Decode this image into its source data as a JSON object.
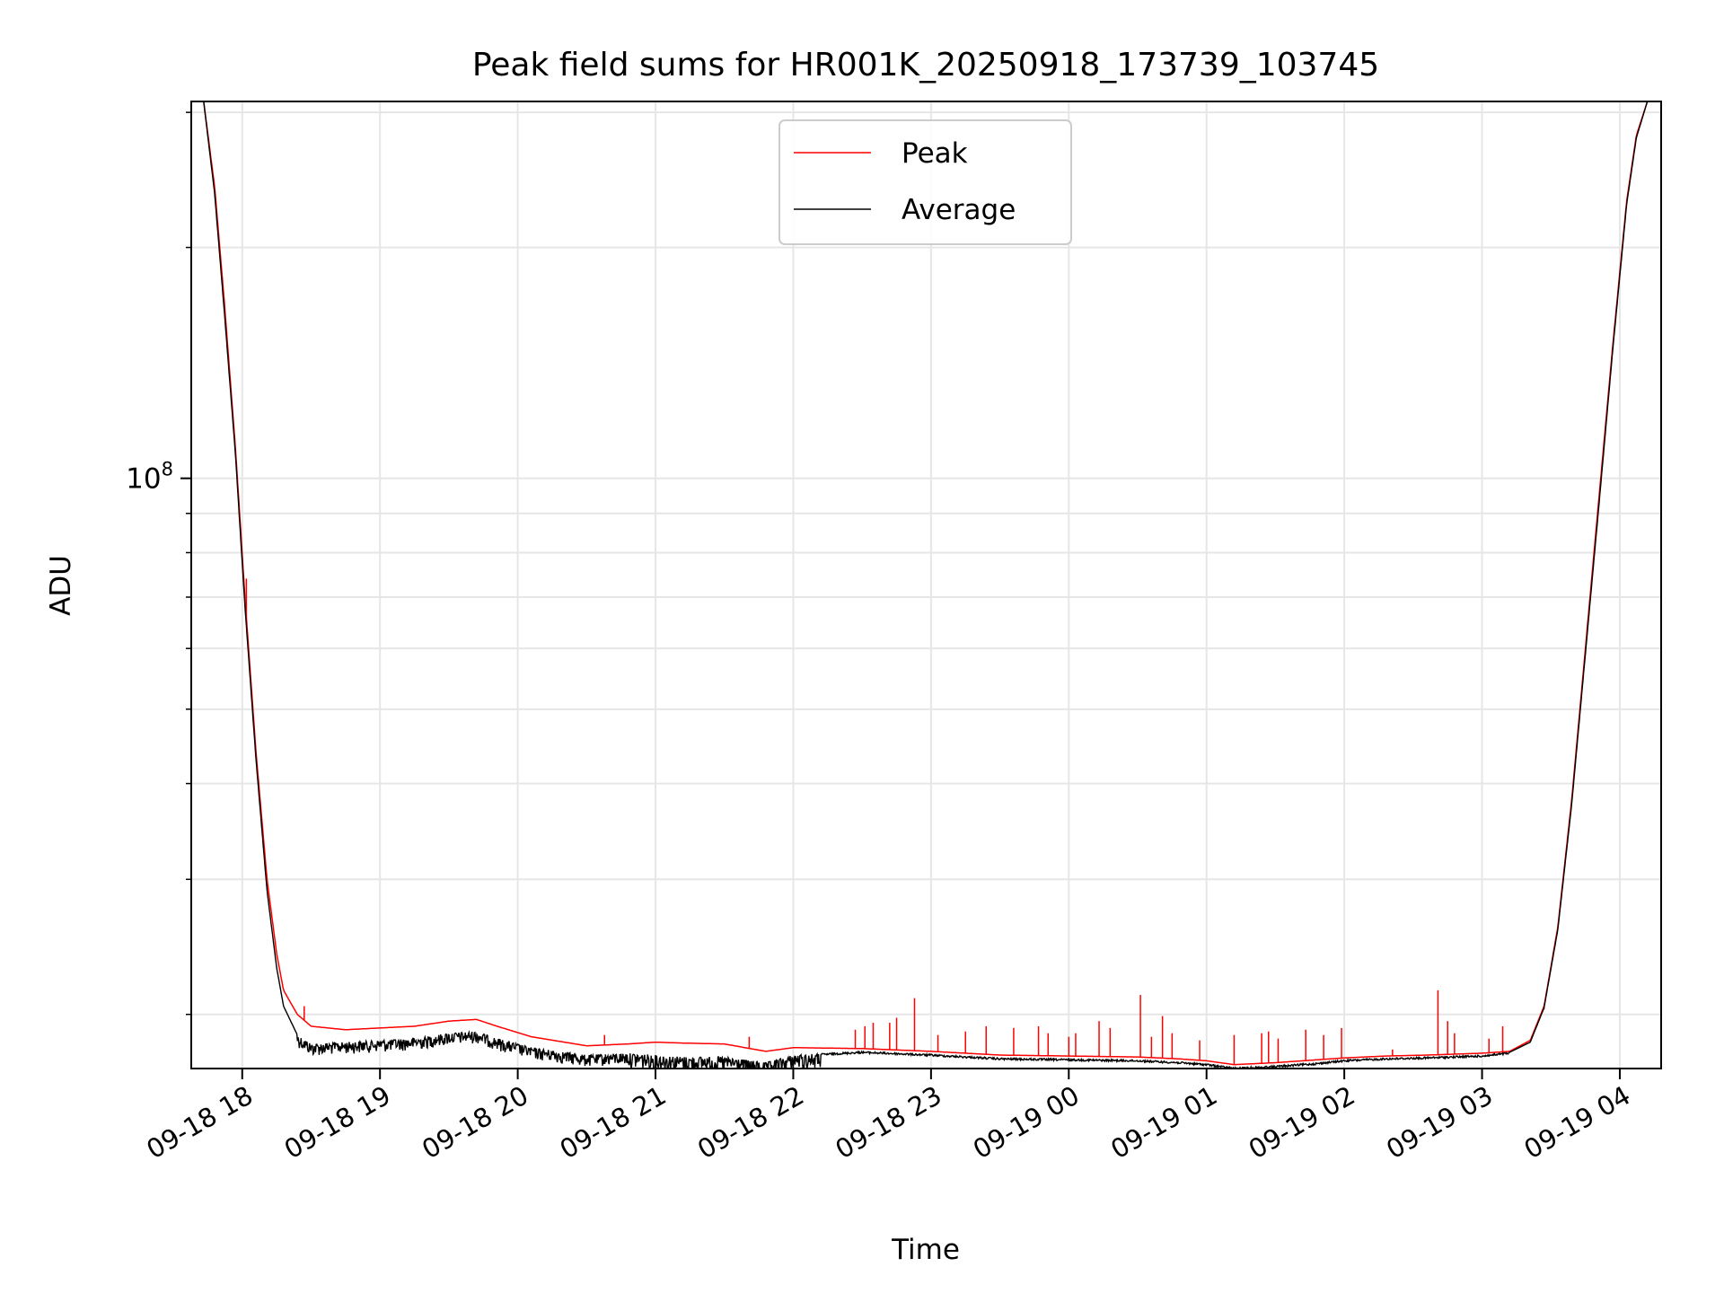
{
  "chart_data": {
    "type": "line",
    "title": "Peak field sums for HR001K_20250918_173739_103745",
    "xlabel": "Time",
    "ylabel": "ADU",
    "yscale": "log",
    "ylim": [
      17000000,
      310000000
    ],
    "xlim_hours": [
      17.63,
      28.3
    ],
    "grid": true,
    "legend_position": "upper center",
    "x_tick_hours": [
      18,
      19,
      20,
      21,
      22,
      23,
      24,
      25,
      26,
      27,
      28
    ],
    "x_tick_labels": [
      "09-18 18",
      "09-18 19",
      "09-18 20",
      "09-18 21",
      "09-18 22",
      "09-18 23",
      "09-19 00",
      "09-19 01",
      "09-19 02",
      "09-19 03",
      "09-19 04"
    ],
    "y_major_ticks": [
      {
        "value": 100000000,
        "base": "10",
        "exponent": "8"
      }
    ],
    "y_minor_ticks": [
      20000000,
      30000000,
      40000000,
      50000000,
      60000000,
      70000000,
      80000000,
      90000000,
      200000000,
      300000000
    ],
    "series": [
      {
        "name": "Peak",
        "color": "#ff0000",
        "x_hours": [
          17.72,
          17.8,
          17.87,
          17.95,
          18.02,
          18.1,
          18.18,
          18.25,
          18.3,
          18.4,
          18.5,
          18.75,
          19.0,
          19.25,
          19.5,
          19.7,
          19.85,
          20.1,
          20.5,
          20.8,
          21.0,
          21.2,
          21.5,
          21.8,
          22.0,
          22.5,
          23.0,
          23.5,
          24.0,
          24.5,
          24.8,
          25.0,
          25.2,
          25.5,
          25.8,
          26.0,
          26.3,
          26.6,
          27.0,
          27.2,
          27.35,
          27.45,
          27.55,
          27.65,
          27.75,
          27.85,
          27.95,
          28.05,
          28.12,
          28.2
        ],
        "values": [
          310000000,
          240000000,
          170000000,
          110000000,
          70000000,
          44000000,
          30000000,
          24000000,
          21500000,
          20000000,
          19300000,
          19100000,
          19200000,
          19300000,
          19600000,
          19700000,
          19300000,
          18700000,
          18200000,
          18300000,
          18400000,
          18350000,
          18300000,
          17900000,
          18100000,
          18050000,
          17900000,
          17700000,
          17650000,
          17600000,
          17500000,
          17400000,
          17200000,
          17300000,
          17450000,
          17550000,
          17650000,
          17700000,
          17800000,
          17900000,
          18500000,
          20500000,
          26000000,
          38000000,
          60000000,
          95000000,
          150000000,
          230000000,
          280000000,
          310000000
        ],
        "spikes": [
          {
            "hour": 18.03,
            "value": 74000000
          },
          {
            "hour": 18.45,
            "value": 20500000
          },
          {
            "hour": 20.63,
            "value": 18800000
          },
          {
            "hour": 21.68,
            "value": 18700000
          },
          {
            "hour": 22.45,
            "value": 19100000
          },
          {
            "hour": 22.52,
            "value": 19300000
          },
          {
            "hour": 22.58,
            "value": 19500000
          },
          {
            "hour": 22.7,
            "value": 19500000
          },
          {
            "hour": 22.75,
            "value": 19800000
          },
          {
            "hour": 22.88,
            "value": 21000000
          },
          {
            "hour": 23.05,
            "value": 18800000
          },
          {
            "hour": 23.25,
            "value": 19000000
          },
          {
            "hour": 23.4,
            "value": 19300000
          },
          {
            "hour": 23.6,
            "value": 19200000
          },
          {
            "hour": 23.78,
            "value": 19300000
          },
          {
            "hour": 23.85,
            "value": 18900000
          },
          {
            "hour": 24.0,
            "value": 18700000
          },
          {
            "hour": 24.05,
            "value": 18900000
          },
          {
            "hour": 24.22,
            "value": 19600000
          },
          {
            "hour": 24.3,
            "value": 19200000
          },
          {
            "hour": 24.52,
            "value": 21200000
          },
          {
            "hour": 24.6,
            "value": 18700000
          },
          {
            "hour": 24.68,
            "value": 19900000
          },
          {
            "hour": 24.75,
            "value": 18900000
          },
          {
            "hour": 24.95,
            "value": 18500000
          },
          {
            "hour": 25.2,
            "value": 18800000
          },
          {
            "hour": 25.4,
            "value": 18900000
          },
          {
            "hour": 25.45,
            "value": 19000000
          },
          {
            "hour": 25.52,
            "value": 18600000
          },
          {
            "hour": 25.72,
            "value": 19100000
          },
          {
            "hour": 25.85,
            "value": 18800000
          },
          {
            "hour": 25.98,
            "value": 19200000
          },
          {
            "hour": 26.35,
            "value": 18000000
          },
          {
            "hour": 26.68,
            "value": 21500000
          },
          {
            "hour": 26.75,
            "value": 19600000
          },
          {
            "hour": 26.8,
            "value": 18900000
          },
          {
            "hour": 27.05,
            "value": 18600000
          },
          {
            "hour": 27.15,
            "value": 19300000
          },
          {
            "hour": 27.32,
            "value": 18300000
          },
          {
            "hour": 27.45,
            "value": 20300000
          }
        ]
      },
      {
        "name": "Average",
        "color": "#000000",
        "noise_hours": [
          18.4,
          22.2
        ],
        "x_hours": [
          17.72,
          17.8,
          17.87,
          17.95,
          18.02,
          18.1,
          18.18,
          18.25,
          18.3,
          18.4,
          18.5,
          18.75,
          19.0,
          19.25,
          19.5,
          19.7,
          19.85,
          20.1,
          20.5,
          20.8,
          21.0,
          21.2,
          21.5,
          21.8,
          22.0,
          22.5,
          23.0,
          23.5,
          24.0,
          24.5,
          24.8,
          25.0,
          25.2,
          25.5,
          25.8,
          26.0,
          26.3,
          26.6,
          27.0,
          27.2,
          27.35,
          27.45,
          27.55,
          27.65,
          27.75,
          27.85,
          27.95,
          28.05,
          28.12,
          28.2
        ],
        "values": [
          310000000,
          235000000,
          165000000,
          108000000,
          68000000,
          43000000,
          29000000,
          23000000,
          20500000,
          18800000,
          18300000,
          18400000,
          18500000,
          18600000,
          18900000,
          19000000,
          18600000,
          18100000,
          17700000,
          17800000,
          17700000,
          17600000,
          17600000,
          17300000,
          17700000,
          17900000,
          17750000,
          17550000,
          17500000,
          17450000,
          17350000,
          17250000,
          17050000,
          17150000,
          17300000,
          17450000,
          17550000,
          17600000,
          17700000,
          17850000,
          18400000,
          20400000,
          25800000,
          37500000,
          59000000,
          93000000,
          148000000,
          228000000,
          278000000,
          310000000
        ]
      }
    ]
  }
}
